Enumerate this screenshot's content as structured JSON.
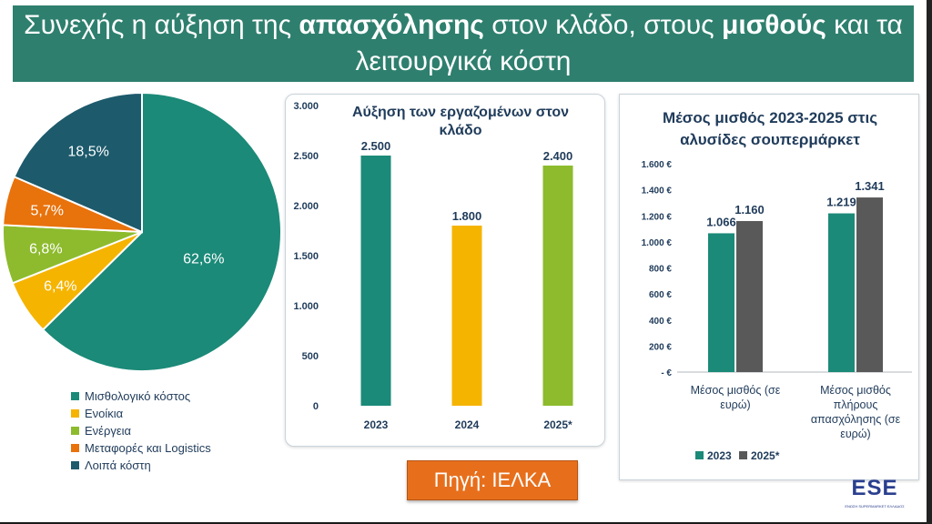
{
  "title": {
    "part1": "Συνεχής η αύξηση της ",
    "bold1": "απασχόλησης",
    "part2": " στον κλάδο, στους ",
    "bold2": "μισθούς",
    "part3": " και τα",
    "line2": "λειτουργικά κόστη"
  },
  "source_label": "Πηγή: ΙΕΛΚΑ",
  "logo_text": "ESE",
  "logo_subtext": "ΕΝΩΣΗ SUPERMARKET ΕΛΛΑΔΟΣ",
  "chart_data": [
    {
      "type": "pie",
      "categories": [
        "Μισθολογικό κόστος",
        "Ενοίκια",
        "Ενέργεια",
        "Μεταφορές και Logistics",
        "Λοιπά κόστη"
      ],
      "values": [
        62.6,
        6.4,
        6.8,
        5.7,
        18.5
      ],
      "labels": [
        "62,6%",
        "6,4%",
        "6,8%",
        "5,7%",
        "18,5%"
      ],
      "colors": [
        "#1b8a78",
        "#f5b400",
        "#8dbb2d",
        "#e8720c",
        "#1d5a6c"
      ],
      "legend": "bottom-left"
    },
    {
      "type": "bar",
      "title": "Αύξηση των εργαζομένων στον κλάδο",
      "categories": [
        "2023",
        "2024",
        "2025*"
      ],
      "values": [
        2500,
        1800,
        2400
      ],
      "value_labels": [
        "2.500",
        "1.800",
        "2.400"
      ],
      "colors": [
        "#1b8a78",
        "#f5b400",
        "#8dbb2d"
      ],
      "ylim": [
        0,
        3000
      ],
      "yticks": [
        0,
        500,
        1000,
        1500,
        2000,
        2500,
        3000
      ],
      "ytick_labels": [
        "0",
        "500",
        "1.000",
        "1.500",
        "2.000",
        "2.500",
        "3.000"
      ]
    },
    {
      "type": "bar",
      "title": "Μέσος μισθός 2023-2025 στις αλυσίδες σουπερμάρκετ",
      "categories": [
        "Μέσος μισθός (σε ευρώ)",
        "Μέσος μισθός πλήρους απασχόλησης (σε ευρώ)"
      ],
      "category_lines": [
        [
          "Μέσος μισθός (σε",
          "ευρώ)"
        ],
        [
          "Μέσος μισθός",
          "πλήρους",
          "απασχόλησης (σε",
          "ευρώ)"
        ]
      ],
      "series": [
        {
          "name": "2023",
          "values": [
            1066,
            1219
          ],
          "value_labels": [
            "1.066",
            "1.219"
          ],
          "color": "#1b8a78"
        },
        {
          "name": "2025*",
          "values": [
            1160,
            1341
          ],
          "value_labels": [
            "1.160",
            "1.341"
          ],
          "color": "#595959"
        }
      ],
      "ylim": [
        0,
        1600
      ],
      "yticks": [
        0,
        200,
        400,
        600,
        800,
        1000,
        1200,
        1400,
        1600
      ],
      "ytick_labels": [
        "-  €",
        "200 €",
        "400 €",
        "600 €",
        "800 €",
        "1.000 €",
        "1.200 €",
        "1.400 €",
        "1.600 €"
      ],
      "legend": "bottom"
    }
  ]
}
